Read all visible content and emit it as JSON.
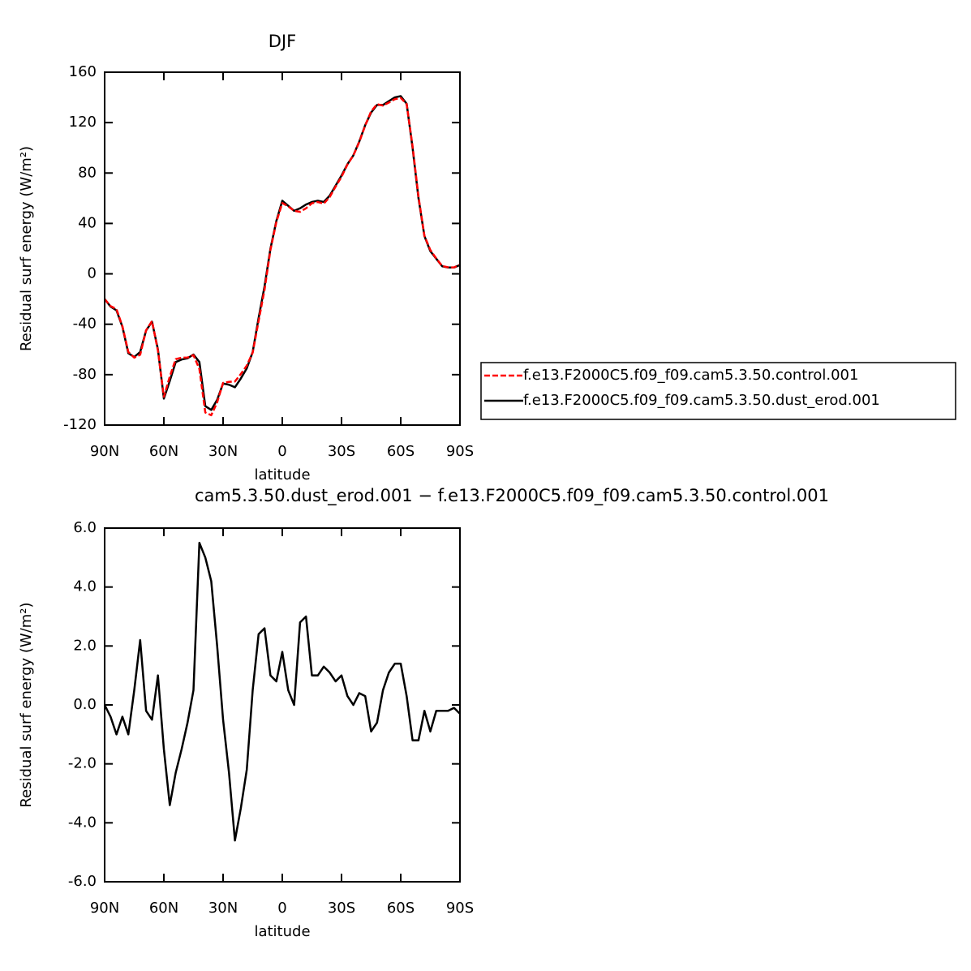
{
  "chart_data": [
    {
      "type": "line",
      "title": "DJF",
      "xlabel": "latitude",
      "ylabel": "Residual surf energy (W/m²)",
      "x": [
        90,
        87,
        84,
        81,
        78,
        75,
        72,
        69,
        66,
        63,
        60,
        57,
        54,
        51,
        48,
        45,
        42,
        39,
        36,
        33,
        30,
        27,
        24,
        21,
        18,
        15,
        12,
        9,
        6,
        3,
        0,
        -3,
        -6,
        -9,
        -12,
        -15,
        -18,
        -21,
        -24,
        -27,
        -30,
        -33,
        -36,
        -39,
        -42,
        -45,
        -48,
        -51,
        -54,
        -57,
        -60,
        -63,
        -66,
        -69,
        -72,
        -75,
        -78,
        -81,
        -84,
        -87,
        -90
      ],
      "series": [
        {
          "name": "f.e13.F2000C5.f09_f09.cam5.3.50.control.001",
          "color": "#ff0000",
          "dash": true,
          "values": [
            -20,
            -25.6,
            -28,
            -41.6,
            -62,
            -66.5,
            -64.2,
            -44.8,
            -37.5,
            -61,
            -97.5,
            -81.6,
            -67.7,
            -66.5,
            -66.4,
            -64.5,
            -75.5,
            -110,
            -112.2,
            -102,
            -86.5,
            -85.7,
            -85.4,
            -79.5,
            -72.8,
            -62.5,
            -37.4,
            -12.6,
            19,
            41.2,
            56.2,
            53.5,
            50,
            49.2,
            52,
            56,
            57,
            55.7,
            60.9,
            69.2,
            77,
            86.7,
            94,
            104.6,
            117.7,
            128.9,
            134.6,
            133.5,
            135.9,
            138.6,
            139.6,
            134.7,
            101.2,
            61.2,
            30.2,
            18.9,
            12.2,
            6.2,
            5.2,
            5.1,
            7.3
          ]
        },
        {
          "name": "f.e13.F2000C5.f09_f09.cam5.3.50.dust_erod.001",
          "color": "#000000",
          "dash": false,
          "values": [
            -20,
            -26,
            -29,
            -42,
            -63,
            -66,
            -62,
            -45,
            -38,
            -60,
            -99,
            -85,
            -70,
            -68,
            -67,
            -64,
            -70,
            -105,
            -108,
            -100,
            -87,
            -88,
            -90,
            -83,
            -75,
            -62,
            -35,
            -10,
            20,
            42,
            58,
            54,
            50,
            52,
            55,
            57,
            58,
            57,
            62,
            70,
            78,
            87,
            94,
            105,
            118,
            128,
            134,
            134,
            137,
            140,
            141,
            135,
            100,
            60,
            30,
            18,
            12,
            6,
            5,
            5,
            7
          ]
        }
      ],
      "xlim": [
        90,
        -90
      ],
      "xticks": [
        {
          "value": 90,
          "label": "90N"
        },
        {
          "value": 60,
          "label": "60N"
        },
        {
          "value": 30,
          "label": "30N"
        },
        0,
        {
          "value": -30,
          "label": "30S"
        },
        {
          "value": -60,
          "label": "60S"
        },
        {
          "value": -90,
          "label": "90S"
        }
      ],
      "ylim": [
        -120,
        160
      ],
      "yticks": [
        -120,
        -80,
        -40,
        0,
        40,
        80,
        120,
        160
      ]
    },
    {
      "type": "line",
      "title": "cam5.3.50.dust_erod.001 − f.e13.F2000C5.f09_f09.cam5.3.50.control.001",
      "xlabel": "latitude",
      "ylabel": "Residual surf energy (W/m²)",
      "x": [
        90,
        87,
        84,
        81,
        78,
        75,
        72,
        69,
        66,
        63,
        60,
        57,
        54,
        51,
        48,
        45,
        42,
        39,
        36,
        33,
        30,
        27,
        24,
        21,
        18,
        15,
        12,
        9,
        6,
        3,
        0,
        -3,
        -6,
        -9,
        -12,
        -15,
        -18,
        -21,
        -24,
        -27,
        -30,
        -33,
        -36,
        -39,
        -42,
        -45,
        -48,
        -51,
        -54,
        -57,
        -60,
        -63,
        -66,
        -69,
        -72,
        -75,
        -78,
        -81,
        -84,
        -87,
        -90
      ],
      "series": [
        {
          "color": "#000000",
          "dash": false,
          "values": [
            0,
            -0.4,
            -1,
            -0.4,
            -1,
            0.5,
            2.2,
            -0.2,
            -0.5,
            1,
            -1.5,
            -3.4,
            -2.3,
            -1.5,
            -0.6,
            0.5,
            5.5,
            5,
            4.2,
            2,
            -0.5,
            -2.3,
            -4.6,
            -3.5,
            -2.2,
            0.5,
            2.4,
            2.6,
            1,
            0.8,
            1.8,
            0.5,
            0,
            2.8,
            3,
            1,
            1,
            1.3,
            1.1,
            0.8,
            1,
            0.3,
            0,
            0.4,
            0.3,
            -0.9,
            -0.6,
            0.5,
            1.1,
            1.4,
            1.4,
            0.3,
            -1.2,
            -1.2,
            -0.2,
            -0.9,
            -0.2,
            -0.2,
            -0.2,
            -0.1,
            -0.3
          ]
        }
      ],
      "xlim": [
        90,
        -90
      ],
      "xticks": [
        {
          "value": 90,
          "label": "90N"
        },
        {
          "value": 60,
          "label": "60N"
        },
        {
          "value": 30,
          "label": "30N"
        },
        0,
        {
          "value": -30,
          "label": "30S"
        },
        {
          "value": -60,
          "label": "60S"
        },
        {
          "value": -90,
          "label": "90S"
        }
      ],
      "ylim": [
        -6,
        6
      ],
      "yticks": [
        {
          "value": -6,
          "label": "-6.0"
        },
        {
          "value": -4,
          "label": "-4.0"
        },
        {
          "value": -2,
          "label": "-2.0"
        },
        {
          "value": 0,
          "label": "0.0"
        },
        {
          "value": 2,
          "label": "2.0"
        },
        {
          "value": 4,
          "label": "4.0"
        },
        {
          "value": 6,
          "label": "6.0"
        }
      ]
    }
  ]
}
